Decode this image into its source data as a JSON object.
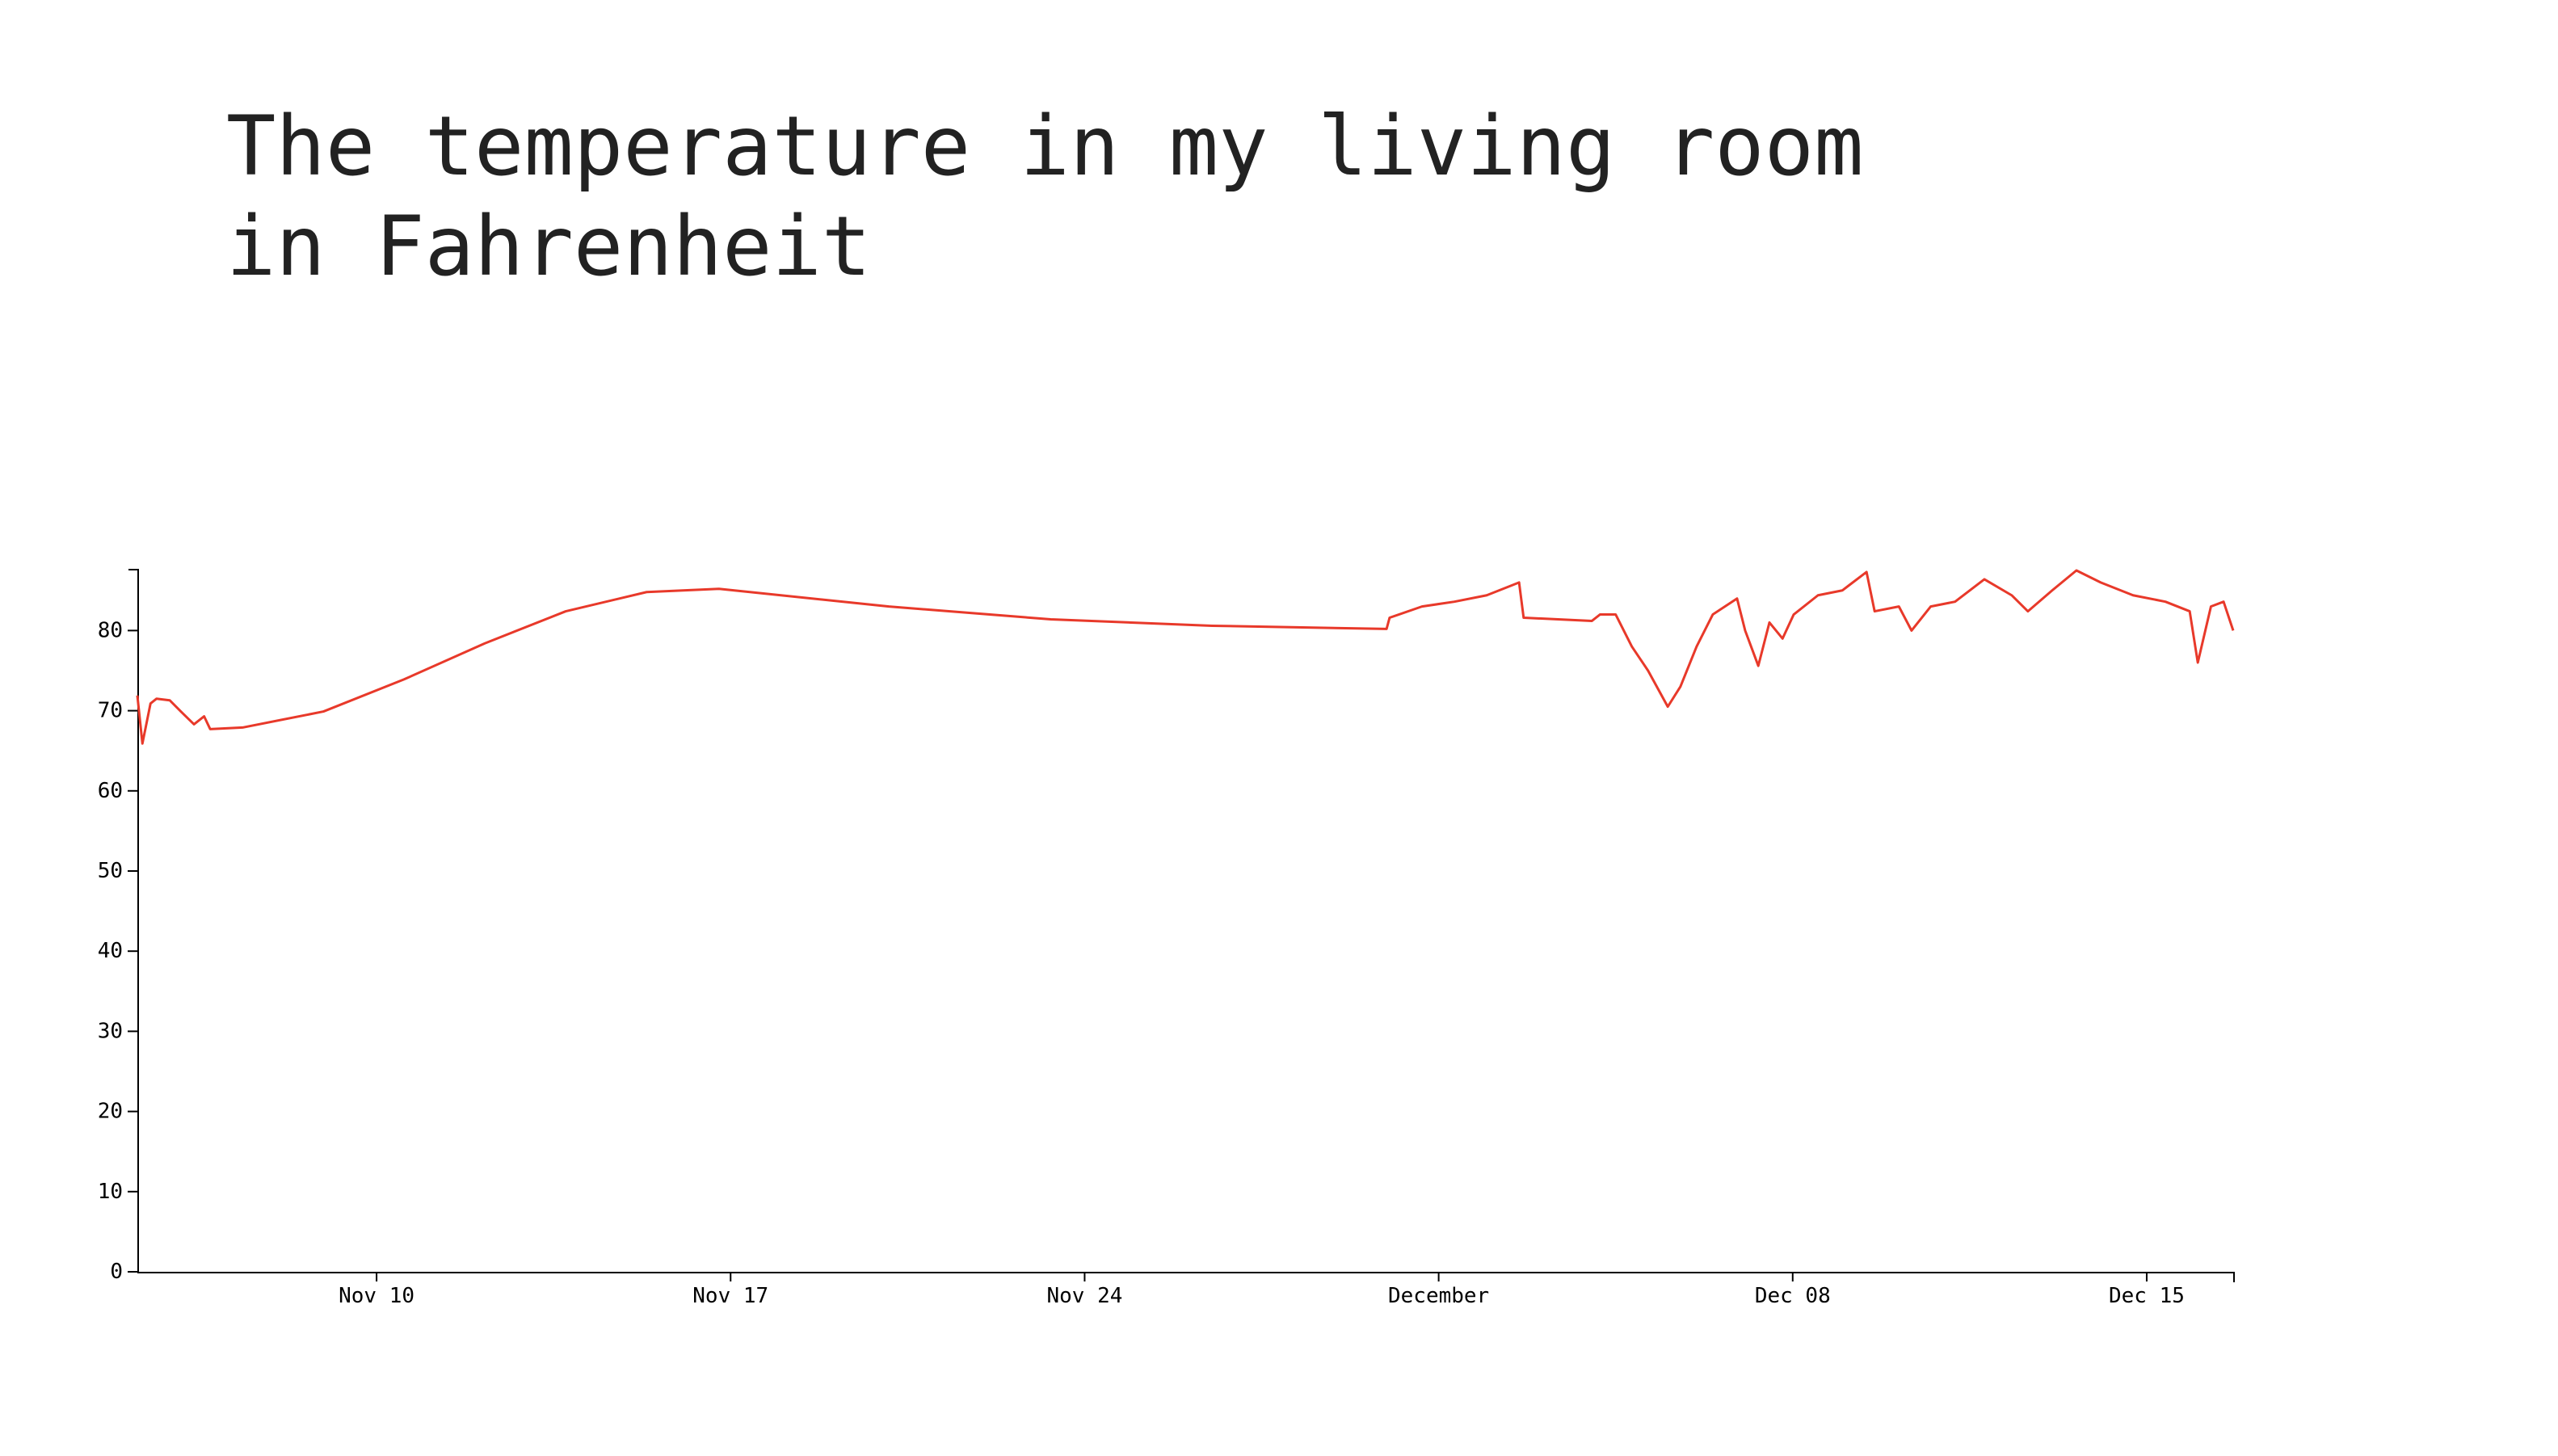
{
  "chart_data": {
    "type": "line",
    "title": "The temperature in my living room in Fahrenheit",
    "color": "#e8392a",
    "x": [
      5.27,
      5.37,
      5.53,
      5.65,
      5.91,
      6.13,
      6.39,
      6.59,
      6.71,
      7.35,
      8.95,
      10.54,
      12.14,
      13.74,
      15.34,
      16.77,
      20.13,
      23.33,
      26.52,
      29.97,
      30.03,
      30.67,
      31.31,
      31.95,
      32.43,
      32.59,
      32.68,
      34.03,
      34.19,
      34.5,
      34.82,
      35.14,
      35.53,
      35.78,
      36.1,
      36.42,
      36.9,
      37.06,
      37.32,
      37.54,
      37.8,
      38.02,
      38.5,
      38.98,
      39.46,
      39.62,
      40.1,
      40.35,
      40.73,
      41.21,
      41.79,
      42.33,
      42.65,
      43.13,
      43.61,
      44.09,
      44.73,
      45.37,
      45.85,
      46.01,
      46.27,
      46.52,
      46.71
    ],
    "values": [
      71.9,
      65.9,
      70.9,
      71.5,
      71.3,
      69.9,
      68.3,
      69.3,
      67.7,
      67.9,
      69.9,
      73.9,
      78.4,
      82.4,
      84.8,
      85.2,
      83.0,
      81.4,
      80.6,
      80.2,
      81.6,
      83.0,
      83.6,
      84.4,
      85.6,
      86.0,
      81.6,
      81.2,
      82.0,
      82.0,
      78.0,
      75.0,
      70.5,
      73.0,
      78.0,
      82.0,
      84.0,
      80.0,
      75.6,
      81.0,
      79.0,
      82.0,
      84.4,
      85.0,
      87.3,
      82.4,
      83.0,
      80.0,
      83.0,
      83.6,
      86.4,
      84.4,
      82.4,
      85.0,
      87.5,
      86.0,
      84.4,
      83.6,
      82.4,
      76.0,
      83.0,
      83.6,
      80.0
    ],
    "xlim": [
      5.27,
      46.71
    ],
    "xticks": [
      {
        "value": 10,
        "label": "Nov 10"
      },
      {
        "value": 17,
        "label": "Nov 17"
      },
      {
        "value": 24,
        "label": "Nov 24"
      },
      {
        "value": 31,
        "label": "December"
      },
      {
        "value": 38,
        "label": "Dec 08"
      },
      {
        "value": 45,
        "label": "Dec 15"
      }
    ],
    "ylim": [
      0,
      87.7
    ],
    "yticks": [
      0,
      10,
      20,
      30,
      40,
      50,
      60,
      70,
      80
    ],
    "grid": false
  }
}
